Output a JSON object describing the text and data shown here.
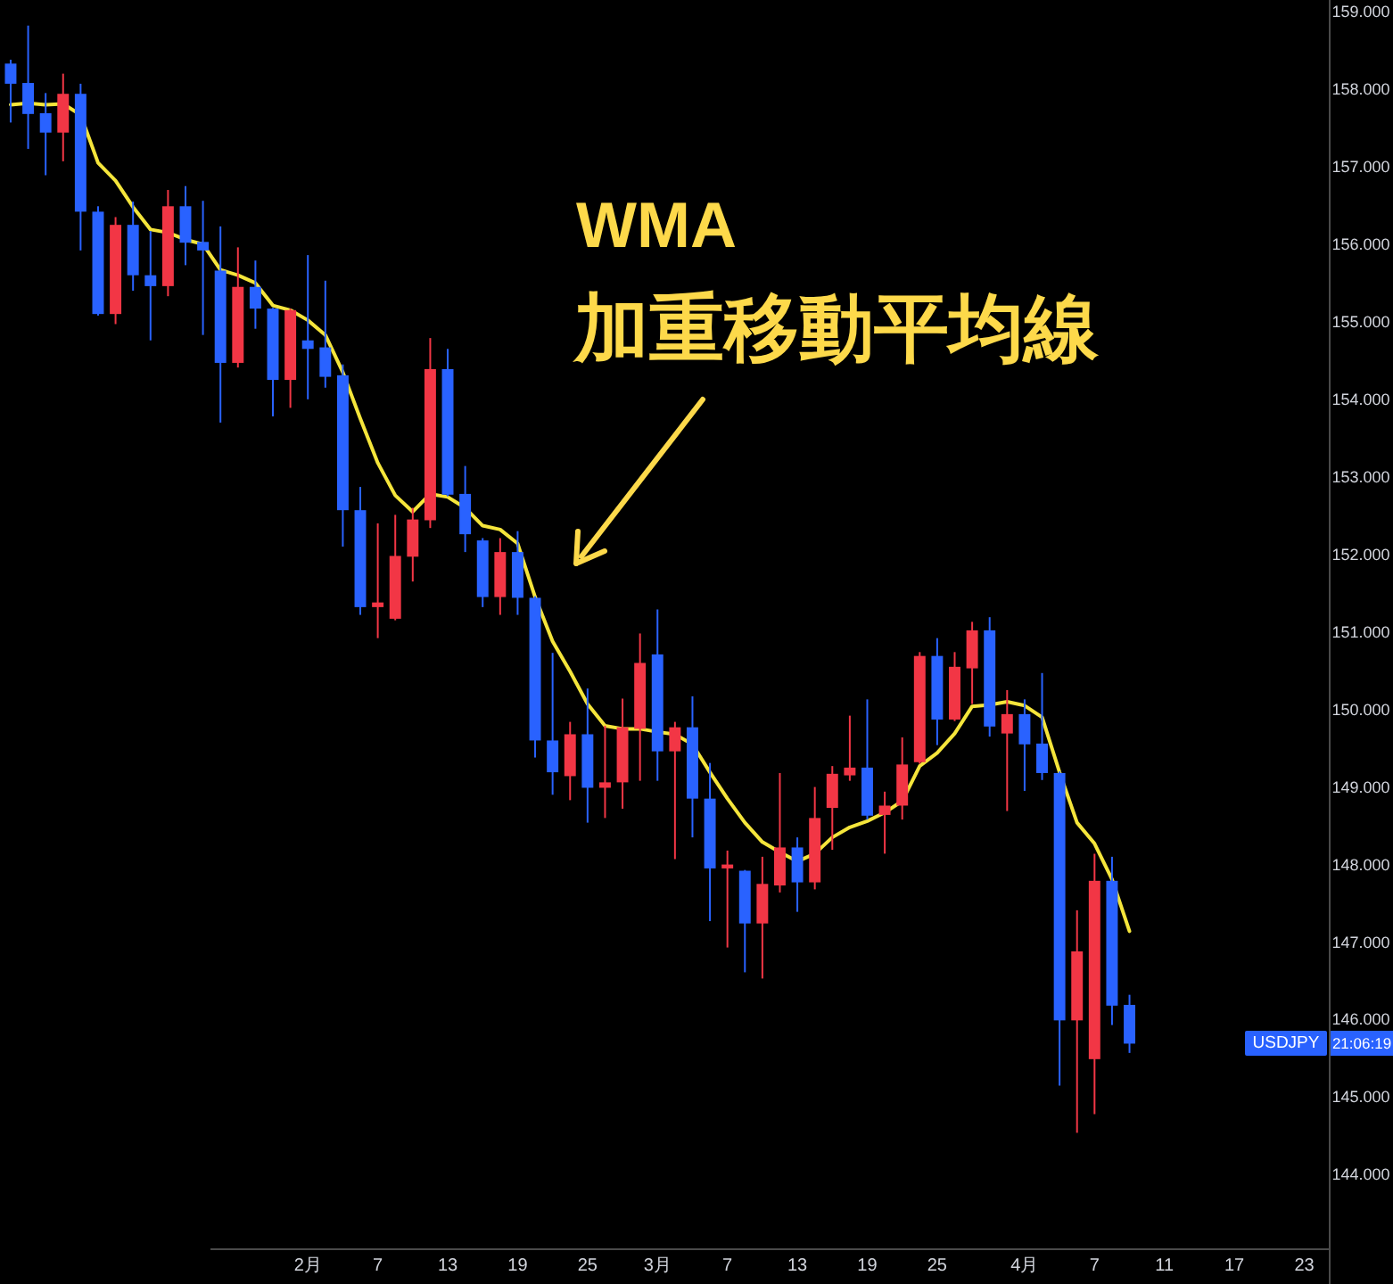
{
  "chart_data": {
    "type": "candlestick",
    "categories": [
      null,
      null,
      null,
      null,
      null,
      null,
      null,
      null,
      null,
      null,
      null,
      null,
      null,
      null,
      null,
      null,
      null,
      "2月",
      null,
      null,
      null,
      "7",
      null,
      null,
      null,
      "13",
      null,
      null,
      null,
      "19",
      null,
      null,
      null,
      "25",
      null,
      null,
      null,
      "3月",
      null,
      null,
      null,
      "7",
      null,
      null,
      null,
      "13",
      null,
      null,
      null,
      "19",
      null,
      null,
      null,
      "25",
      null,
      null,
      null,
      null,
      "4月",
      null,
      null,
      null,
      "7",
      null,
      null,
      null,
      "11",
      null,
      null,
      null,
      "17",
      null,
      null,
      null,
      "23",
      null
    ],
    "ohlc": [
      [
        158.33,
        158.38,
        157.57,
        158.07
      ],
      [
        158.08,
        158.82,
        157.23,
        157.68
      ],
      [
        157.69,
        157.95,
        156.89,
        157.44
      ],
      [
        157.44,
        158.2,
        157.07,
        157.94
      ],
      [
        157.94,
        158.07,
        155.92,
        156.42
      ],
      [
        156.42,
        156.49,
        155.08,
        155.1
      ],
      [
        155.1,
        156.35,
        154.97,
        156.25
      ],
      [
        156.25,
        156.55,
        155.4,
        155.6
      ],
      [
        155.6,
        156.17,
        154.76,
        155.46
      ],
      [
        155.46,
        156.7,
        155.33,
        156.49
      ],
      [
        156.49,
        156.75,
        155.73,
        156.02
      ],
      [
        156.03,
        156.56,
        154.83,
        155.92
      ],
      [
        155.66,
        156.23,
        153.7,
        154.47
      ],
      [
        154.47,
        155.96,
        154.41,
        155.45
      ],
      [
        155.45,
        155.79,
        154.91,
        155.17
      ],
      [
        155.17,
        155.18,
        153.78,
        154.25
      ],
      [
        154.25,
        155.17,
        153.89,
        155.15
      ],
      [
        154.76,
        155.86,
        154.0,
        154.65
      ],
      [
        154.67,
        155.53,
        154.15,
        154.29
      ],
      [
        154.31,
        154.45,
        152.1,
        152.57
      ],
      [
        152.57,
        152.87,
        151.22,
        151.32
      ],
      [
        151.32,
        152.4,
        150.92,
        151.38
      ],
      [
        151.17,
        152.51,
        151.15,
        151.98
      ],
      [
        151.97,
        152.6,
        151.65,
        152.45
      ],
      [
        152.44,
        154.79,
        152.34,
        154.39
      ],
      [
        154.39,
        154.65,
        152.75,
        152.77
      ],
      [
        152.78,
        153.14,
        152.03,
        152.26
      ],
      [
        152.18,
        152.21,
        151.32,
        151.45
      ],
      [
        151.45,
        152.21,
        151.22,
        152.03
      ],
      [
        152.03,
        152.3,
        151.22,
        151.44
      ],
      [
        151.44,
        151.46,
        149.38,
        149.6
      ],
      [
        149.6,
        150.73,
        148.9,
        149.19
      ],
      [
        149.14,
        149.84,
        148.83,
        149.68
      ],
      [
        149.68,
        150.27,
        148.54,
        148.99
      ],
      [
        148.99,
        149.79,
        148.6,
        149.06
      ],
      [
        149.06,
        150.14,
        148.72,
        149.77
      ],
      [
        149.75,
        150.98,
        149.08,
        150.6
      ],
      [
        150.71,
        151.29,
        149.08,
        149.46
      ],
      [
        149.46,
        149.84,
        148.07,
        149.77
      ],
      [
        149.77,
        150.17,
        148.35,
        148.85
      ],
      [
        148.85,
        149.31,
        147.27,
        147.95
      ],
      [
        147.95,
        148.18,
        146.93,
        148.0
      ],
      [
        147.92,
        147.93,
        146.61,
        147.24
      ],
      [
        147.24,
        148.1,
        146.53,
        147.75
      ],
      [
        147.73,
        149.18,
        147.64,
        148.22
      ],
      [
        148.22,
        148.35,
        147.39,
        147.77
      ],
      [
        147.77,
        149.0,
        147.68,
        148.6
      ],
      [
        148.73,
        149.27,
        148.19,
        149.17
      ],
      [
        149.15,
        149.92,
        149.08,
        149.25
      ],
      [
        149.25,
        150.13,
        148.58,
        148.63
      ],
      [
        148.64,
        148.94,
        148.14,
        148.76
      ],
      [
        148.76,
        149.64,
        148.58,
        149.29
      ],
      [
        149.32,
        150.74,
        149.3,
        150.69
      ],
      [
        150.69,
        150.92,
        149.54,
        149.87
      ],
      [
        149.87,
        150.74,
        149.85,
        150.55
      ],
      [
        150.53,
        151.13,
        150.07,
        151.02
      ],
      [
        151.02,
        151.19,
        149.65,
        149.78
      ],
      [
        149.69,
        150.25,
        148.69,
        149.94
      ],
      [
        149.94,
        150.13,
        148.95,
        149.55
      ],
      [
        149.56,
        150.47,
        149.09,
        149.18
      ],
      [
        149.18,
        149.2,
        145.15,
        145.99
      ],
      [
        145.99,
        147.41,
        144.54,
        146.88
      ],
      [
        145.49,
        148.14,
        144.78,
        147.79
      ],
      [
        147.79,
        148.1,
        145.93,
        146.18
      ],
      [
        146.19,
        146.32,
        145.57,
        145.69
      ],
      null,
      null,
      null,
      null,
      null,
      null,
      null,
      null,
      null,
      null,
      null
    ],
    "colors": [
      "#2962ff",
      "#2962ff",
      "#2962ff",
      "#f23645",
      "#2962ff",
      "#2962ff",
      "#f23645",
      "#2962ff",
      "#2962ff",
      "#f23645",
      "#2962ff",
      "#2962ff",
      "#2962ff",
      "#f23645",
      "#2962ff",
      "#2962ff",
      "#f23645",
      "#2962ff",
      "#2962ff",
      "#2962ff",
      "#2962ff",
      "#f23645",
      "#f23645",
      "#f23645",
      "#f23645",
      "#2962ff",
      "#2962ff",
      "#2962ff",
      "#f23645",
      "#2962ff",
      "#2962ff",
      "#2962ff",
      "#f23645",
      "#2962ff",
      "#f23645",
      "#f23645",
      "#f23645",
      "#2962ff",
      "#f23645",
      "#2962ff",
      "#2962ff",
      "#f23645",
      "#2962ff",
      "#f23645",
      "#f23645",
      "#2962ff",
      "#f23645",
      "#f23645",
      "#f23645",
      "#2962ff",
      "#f23645",
      "#f23645",
      "#f23645",
      "#2962ff",
      "#f23645",
      "#f23645",
      "#2962ff",
      "#f23645",
      "#2962ff",
      "#2962ff",
      "#2962ff",
      "#f23645",
      "#f23645",
      "#2962ff",
      "#2962ff",
      null,
      null,
      null,
      null,
      null,
      null,
      null,
      null,
      null,
      null,
      null
    ],
    "series": [
      {
        "type": "line",
        "color": "#f5e53b",
        "values": [
          157.8,
          157.82,
          157.8,
          157.81,
          157.67,
          157.05,
          156.82,
          156.48,
          156.19,
          156.15,
          156.06,
          156.0,
          155.67,
          155.6,
          155.5,
          155.21,
          155.15,
          155.02,
          154.83,
          154.35,
          153.75,
          153.18,
          152.76,
          152.55,
          152.78,
          152.74,
          152.6,
          152.37,
          152.32,
          152.14,
          151.45,
          150.88,
          150.49,
          150.07,
          149.79,
          149.75,
          149.75,
          149.71,
          149.68,
          149.55,
          149.19,
          148.85,
          148.54,
          148.29,
          148.16,
          148.04,
          148.14,
          148.35,
          148.48,
          148.56,
          148.67,
          148.82,
          149.27,
          149.44,
          149.69,
          150.04,
          150.06,
          150.1,
          150.05,
          149.9,
          149.19,
          148.54,
          148.27,
          147.81,
          147.14,
          null,
          null,
          null,
          null,
          null,
          null,
          null,
          null,
          null,
          null,
          null
        ]
      }
    ],
    "ylim": [
      143.05,
      159.15
    ],
    "yticks": [
      {
        "value": 144,
        "label": "144.000"
      },
      {
        "value": 145,
        "label": "145.000"
      },
      {
        "value": 146,
        "label": "146.000"
      },
      {
        "value": 147,
        "label": "147.000"
      },
      {
        "value": 148,
        "label": "148.000"
      },
      {
        "value": 149,
        "label": "149.000"
      },
      {
        "value": 150,
        "label": "150.000"
      },
      {
        "value": 151,
        "label": "151.000"
      },
      {
        "value": 152,
        "label": "152.000"
      },
      {
        "value": 153,
        "label": "153.000"
      },
      {
        "value": 154,
        "label": "154.000"
      },
      {
        "value": 155,
        "label": "155.000"
      },
      {
        "value": 156,
        "label": "156.000"
      },
      {
        "value": 157,
        "label": "157.000"
      },
      {
        "value": 158,
        "label": "158.000"
      },
      {
        "value": 159,
        "label": "159.000"
      }
    ],
    "grid": false,
    "annotations": [
      "WMA",
      "加重移動平均線",
      "USDJPY",
      "21:06:19"
    ]
  }
}
